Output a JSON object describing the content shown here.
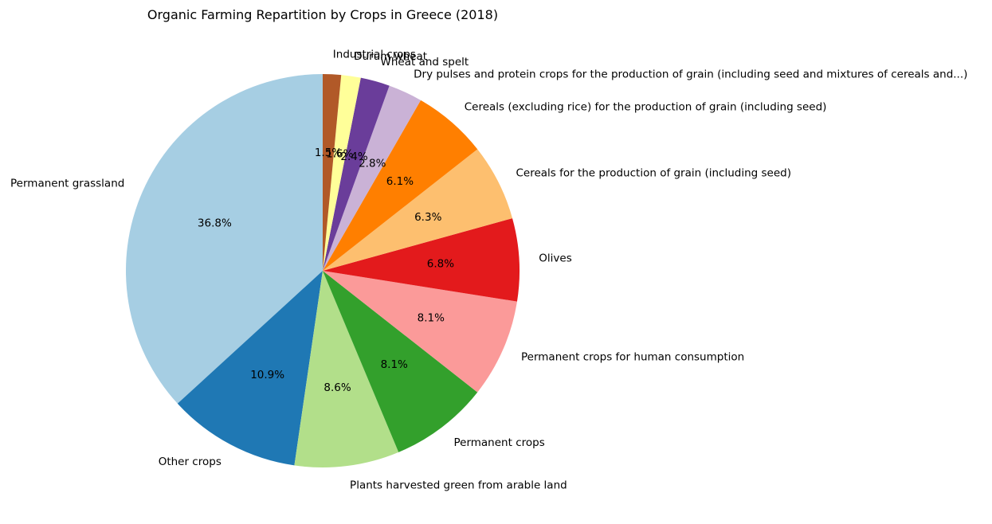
{
  "chart_data": {
    "type": "pie",
    "title": "Organic Farming Repartition by Crops in Greece (2018)",
    "start_angle_deg": 90,
    "direction": "counterclockwise",
    "slices": [
      {
        "label": "Permanent grassland",
        "pct_text": "36.8%",
        "value": 36.8,
        "color": "#a6cee3"
      },
      {
        "label": "Other crops",
        "pct_text": "10.9%",
        "value": 10.9,
        "color": "#1f78b4"
      },
      {
        "label": "Plants harvested green from arable land",
        "pct_text": "8.6%",
        "value": 8.6,
        "color": "#b2df8a"
      },
      {
        "label": "Permanent crops",
        "pct_text": "8.1%",
        "value": 8.1,
        "color": "#33a02c"
      },
      {
        "label": "Permanent crops for human consumption",
        "pct_text": "8.1%",
        "value": 8.1,
        "color": "#fb9a99"
      },
      {
        "label": "Olives",
        "pct_text": "6.8%",
        "value": 6.8,
        "color": "#e31a1c"
      },
      {
        "label": "Cereals for the production of grain (including seed)",
        "pct_text": "6.3%",
        "value": 6.3,
        "color": "#fdbf6f"
      },
      {
        "label": "Cereals (excluding rice) for the production of grain (including seed)",
        "pct_text": "6.1%",
        "value": 6.1,
        "color": "#ff7f00"
      },
      {
        "label": "Dry pulses and protein crops for the production of grain (including seed and mixtures of cereals and...)",
        "pct_text": "2.8%",
        "value": 2.8,
        "color": "#cab2d6"
      },
      {
        "label": "Wheat and spelt",
        "pct_text": "2.4%",
        "value": 2.4,
        "color": "#6a3d9a"
      },
      {
        "label": "Durum wheat",
        "pct_text": "1.6%",
        "value": 1.6,
        "color": "#ffff99"
      },
      {
        "label": "Industrial crops",
        "pct_text": "1.5%",
        "value": 1.5,
        "color": "#b15928"
      }
    ]
  }
}
